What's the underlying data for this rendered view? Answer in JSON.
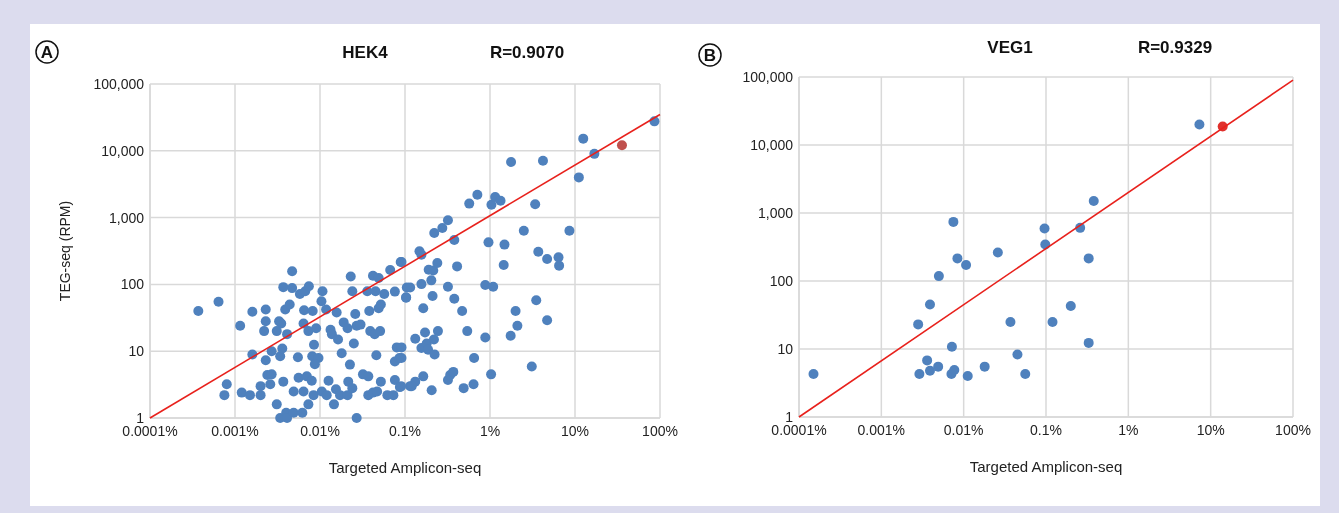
{
  "chart_data": [
    {
      "type": "scatter",
      "title": "HEK4",
      "annotations": [
        "A",
        "R=0.9070"
      ],
      "xlabel": "Targeted Amplicon-seq",
      "ylabel": "TEG-seq (RPM)",
      "log": "xy",
      "grid": true,
      "marker": "circle",
      "xlim": [
        0.0001,
        100
      ],
      "ylim": [
        1,
        100000
      ],
      "xticks": [
        {
          "value": 0.0001,
          "label": "0.0001%"
        },
        {
          "value": 0.001,
          "label": "0.001%"
        },
        {
          "value": 0.01,
          "label": "0.01%"
        },
        {
          "value": 0.1,
          "label": "0.1%"
        },
        {
          "value": 1,
          "label": "1%"
        },
        {
          "value": 10,
          "label": "10%"
        },
        {
          "value": 100,
          "label": "100%"
        }
      ],
      "yticks": [
        1,
        10,
        100,
        {
          "value": 1000,
          "label": "1,000"
        },
        {
          "value": 10000,
          "label": "10,000"
        },
        {
          "value": 100000,
          "label": "100,000"
        }
      ],
      "series": [
        {
          "color": "#4f81bd",
          "x": [
            0.00037,
            0.00064,
            0.00115,
            0.0016,
            0.0023,
            0.0023,
            0.0022,
            0.0047,
            0.0037,
            0.0047,
            0.0058,
            0.0067,
            0.0074,
            0.0107,
            0.0104,
            0.0039,
            0.0044,
            0.0033,
            0.0035,
            0.0031,
            0.0041,
            0.0064,
            0.0073,
            0.009,
            0.0065,
            0.0082,
            0.0118,
            0.0157,
            0.019,
            0.0133,
            0.0138,
            0.0163,
            0.0211,
            0.027,
            0.03,
            0.026,
            0.025,
            0.023,
            0.024,
            0.042,
            0.049,
            0.067,
            0.089,
            0.036,
            0.045,
            0.057,
            0.076,
            0.105,
            0.103,
            0.038,
            0.049,
            0.052,
            0.039,
            0.044,
            0.051,
            0.0016,
            0.0023,
            0.0027,
            0.0034,
            0.0036,
            0.0055,
            0.0085,
            0.0081,
            0.0096,
            0.0087,
            0.018,
            0.0225,
            0.046,
            0.08,
            0.076,
            0.086,
            0.0008,
            0.00075,
            0.0012,
            0.0015,
            0.002,
            0.002,
            0.0024,
            0.0027,
            0.0026,
            0.0037,
            0.0031,
            0.0034,
            0.004,
            0.0041,
            0.0049,
            0.0062,
            0.0056,
            0.007,
            0.008,
            0.0049,
            0.0064,
            0.0073,
            0.0084,
            0.0105,
            0.0126,
            0.012,
            0.0146,
            0.0154,
            0.0172,
            0.0211,
            0.0215,
            0.024,
            0.027,
            0.032,
            0.037,
            0.037,
            0.042,
            0.047,
            0.052,
            0.062,
            0.073,
            0.076,
            0.087,
            0.115,
            0.091,
            0.103,
            0.115,
            0.091,
            0.091,
            0.09,
            0.148,
            0.156,
            0.156,
            0.204,
            0.19,
            0.215,
            0.24,
            0.211,
            0.164,
            0.132,
            0.172,
            0.244,
            0.156,
            0.18,
            0.219,
            0.187,
            0.223,
            0.164,
            0.132,
            0.12,
            0.206,
            0.32,
            0.34,
            0.37,
            0.49,
            0.64,
            0.65,
            0.54,
            0.47,
            0.38,
            0.32,
            0.41,
            0.38,
            0.221,
            0.275,
            0.32,
            0.57,
            0.71,
            1.04,
            1.15,
            1.33,
            1.77,
            4.2,
            3.4,
            0.96,
            1.48,
            1.45,
            0.88,
            1.09,
            2.5,
            3.7,
            4.7,
            6.4,
            6.5,
            8.6,
            3.5,
            2.0,
            2.1,
            1.75,
            0.88,
            1.03,
            3.1,
            4.7,
            11.1,
            12.5,
            16.9,
            86
          ],
          "values": [
            40,
            55,
            24,
            39,
            42,
            28,
            20,
            157,
            91,
            88,
            72,
            79,
            94,
            79,
            56,
            42,
            50,
            28,
            26,
            20,
            18,
            26,
            20,
            22,
            41,
            40,
            42,
            38,
            27,
            21,
            18,
            15,
            22,
            24,
            25,
            36,
            13,
            131,
            79,
            135,
            125,
            164,
            216,
            79,
            79,
            72,
            78,
            90,
            64,
            40,
            44,
            50,
            20,
            18,
            20,
            8.9,
            7.3,
            10,
            8.4,
            11,
            8.1,
            12.5,
            8.4,
            7.9,
            6.4,
            9.3,
            6.3,
            8.7,
            11.4,
            7.0,
            7.9,
            3.2,
            2.2,
            2.4,
            2.2,
            2.2,
            3.0,
            4.4,
            4.5,
            3.2,
            3.5,
            1.6,
            1.0,
            1.2,
            1.0,
            1.2,
            1.2,
            4.0,
            4.2,
            3.6,
            2.5,
            2.5,
            1.6,
            2.2,
            2.5,
            3.6,
            2.2,
            1.6,
            2.7,
            2.2,
            2.2,
            3.5,
            2.8,
            1.0,
            4.5,
            4.2,
            2.2,
            2.4,
            2.5,
            3.5,
            2.2,
            2.2,
            3.7,
            2.9,
            3.0,
            216,
            63,
            90,
            11.4,
            7.9,
            3.0,
            313,
            279,
            101,
            115,
            166,
            161,
            209,
            67,
            44,
            15.4,
            19,
            20,
            11.2,
            13,
            15,
            10.5,
            8.9,
            4.2,
            3.5,
            3.0,
            2.6,
            3.7,
            4.4,
            4.9,
            2.8,
            3.2,
            7.9,
            20,
            40,
            61,
            92,
            186,
            462,
            589,
            698,
            910,
            1620,
            2200,
            1560,
            2030,
            1790,
            6800,
            7100,
            1580,
            426,
            394,
            195,
            98,
            92,
            637,
            309,
            240,
            254,
            191,
            637,
            58,
            40,
            24,
            17,
            16,
            4.5,
            5.9,
            29,
            4000,
            15200,
            9000,
            27600
          ]
        },
        {
          "color": "#c0504d",
          "x": [
            35.7
          ],
          "values": [
            12100
          ]
        },
        {
          "type": "line",
          "color": "#e8211c",
          "marker": "none",
          "x": [
            0.0001,
            100
          ],
          "values": [
            1,
            35000
          ]
        }
      ]
    },
    {
      "type": "scatter",
      "title": "VEG1",
      "annotations": [
        "B",
        "R=0.9329"
      ],
      "xlabel": "Targeted Amplicon-seq",
      "log": "xy",
      "grid": true,
      "marker": "circle",
      "xlim": [
        0.0001,
        100
      ],
      "ylim": [
        1,
        100000
      ],
      "xticks": [
        {
          "value": 0.0001,
          "label": "0.0001%"
        },
        {
          "value": 0.001,
          "label": "0.001%"
        },
        {
          "value": 0.01,
          "label": "0.01%"
        },
        {
          "value": 0.1,
          "label": "0.1%"
        },
        {
          "value": 1,
          "label": "1%"
        },
        {
          "value": 10,
          "label": "10%"
        },
        {
          "value": 100,
          "label": "100%"
        }
      ],
      "yticks": [
        1,
        10,
        100,
        {
          "value": 1000,
          "label": "1,000"
        },
        {
          "value": 10000,
          "label": "10,000"
        },
        {
          "value": 100000,
          "label": "100,000"
        }
      ],
      "series": [
        {
          "color": "#4f81bd",
          "x": [
            0.00015,
            7.3,
            0.38,
            0.0075,
            0.096,
            0.26,
            0.098,
            0.026,
            0.33,
            0.0084,
            0.0107,
            0.005,
            0.0039,
            0.0028,
            0.2,
            0.037,
            0.12,
            0.33,
            0.0072,
            0.045,
            0.0036,
            0.0049,
            0.018,
            0.0029,
            0.0039,
            0.0071,
            0.0077,
            0.0112,
            0.056
          ],
          "values": [
            4.3,
            20000,
            1500,
            740,
            590,
            605,
            345,
            263,
            215,
            215,
            172,
            118,
            45,
            23,
            43,
            25,
            25,
            12.3,
            10.8,
            8.3,
            6.8,
            5.5,
            5.5,
            4.3,
            4.8,
            4.3,
            4.9,
            4.0,
            4.3
          ]
        },
        {
          "color": "#e0302c",
          "x": [
            14
          ],
          "values": [
            18700
          ]
        },
        {
          "type": "line",
          "color": "#e8211c",
          "marker": "none",
          "x": [
            0.0001,
            100
          ],
          "values": [
            1,
            90000
          ]
        }
      ]
    }
  ]
}
